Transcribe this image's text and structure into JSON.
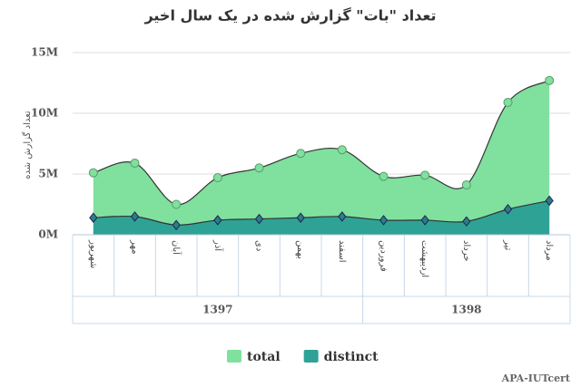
{
  "chart_data": {
    "type": "area",
    "title": "تعداد \"بات\" گزارش شده در یک سال اخیر",
    "y_label": "تعداد گزارش شده",
    "categories": [
      "شهریور",
      "مهر",
      "آبان",
      "آذر",
      "دی",
      "بهمن",
      "اسفند",
      "فروردین",
      "اردیبهشت",
      "خرداد",
      "تیر",
      "مرداد"
    ],
    "x_groups": [
      "1397",
      "1397",
      "1397",
      "1397",
      "1397",
      "1397",
      "1397",
      "1398",
      "1398",
      "1398",
      "1398",
      "1398"
    ],
    "series": [
      {
        "name": "total",
        "color": "#80e09e",
        "values": [
          5100000,
          5900000,
          2500000,
          4700000,
          5500000,
          6700000,
          7000000,
          4800000,
          4900000,
          4100000,
          10900000,
          12700000
        ]
      },
      {
        "name": "distinct",
        "color": "#2fa296",
        "values": [
          1400000,
          1500000,
          800000,
          1200000,
          1300000,
          1400000,
          1500000,
          1200000,
          1200000,
          1100000,
          2100000,
          2800000
        ]
      }
    ],
    "ylim": [
      0,
      15000000
    ],
    "yticks": [
      {
        "value": 0,
        "label": "0M"
      },
      {
        "value": 5000000,
        "label": "5M"
      },
      {
        "value": 10000000,
        "label": "10M"
      },
      {
        "value": 15000000,
        "label": "15M"
      }
    ],
    "grid": true,
    "credit": "APA-IUTcert"
  }
}
